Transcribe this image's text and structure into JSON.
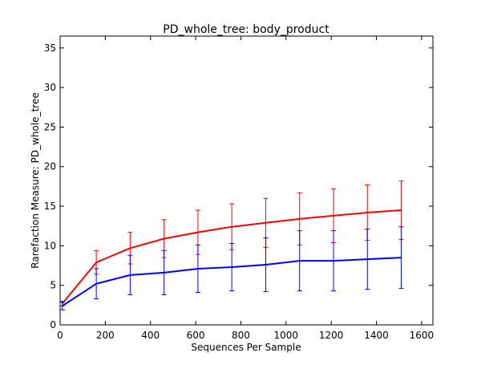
{
  "chart_data": {
    "type": "line",
    "title": "PD_whole_tree: body_product",
    "xlabel": "Sequences Per Sample",
    "ylabel": "Rarefaction Measure: PD_whole_tree",
    "xlim": [
      0,
      1650
    ],
    "ylim": [
      0,
      36.5
    ],
    "xticks": [
      0,
      200,
      400,
      600,
      800,
      1000,
      1200,
      1400,
      1600
    ],
    "yticks": [
      0,
      5,
      10,
      15,
      20,
      25,
      30,
      35
    ],
    "grid": false,
    "legend": "none",
    "x": [
      10,
      160,
      310,
      460,
      610,
      760,
      910,
      1060,
      1210,
      1360,
      1510
    ],
    "series": [
      {
        "color": "#ff0000",
        "values": [
          2.7,
          7.9,
          9.7,
          10.9,
          11.7,
          12.4,
          12.9,
          13.4,
          13.8,
          14.2,
          14.5
        ],
        "error": [
          0.3,
          1.5,
          2.0,
          2.4,
          2.8,
          2.9,
          3.1,
          3.3,
          3.4,
          3.5,
          3.7
        ]
      },
      {
        "color": "#0000ff",
        "values": [
          2.4,
          5.2,
          6.3,
          6.6,
          7.1,
          7.3,
          7.6,
          8.1,
          8.1,
          8.3,
          8.5
        ],
        "error": [
          0.5,
          1.9,
          2.5,
          2.8,
          3.0,
          3.0,
          3.4,
          3.8,
          3.8,
          3.8,
          3.9
        ]
      }
    ]
  }
}
